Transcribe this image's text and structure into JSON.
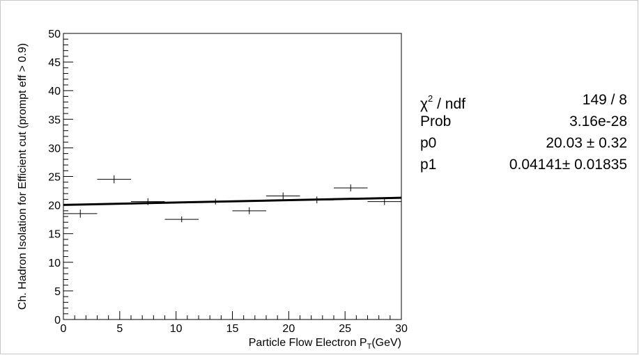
{
  "chart_data": {
    "type": "scatter",
    "title": "",
    "xlabel": "Particle Flow Electron P",
    "xlabel_sub": "T",
    "xlabel_unit": "(GeV)",
    "ylabel": "Ch. Hadron Isolation for Efficient cut (prompt eff > 0.9)",
    "xlim": [
      0,
      30
    ],
    "ylim": [
      0,
      50
    ],
    "x_ticks": [
      0,
      5,
      10,
      15,
      20,
      25,
      30
    ],
    "y_ticks": [
      0,
      5,
      10,
      15,
      20,
      25,
      30,
      35,
      40,
      45,
      50
    ],
    "grid": false,
    "series": [
      {
        "x": [
          1.5,
          4.5,
          7.5,
          10.5,
          13.5,
          16.5,
          19.5,
          22.5,
          25.5,
          28.5
        ],
        "y": [
          18.5,
          24.5,
          20.6,
          17.5,
          20.6,
          19.0,
          21.6,
          20.9,
          23.0,
          20.6
        ],
        "xerr": [
          1.5,
          1.5,
          1.5,
          1.5,
          1.5,
          1.5,
          1.5,
          1.5,
          1.5,
          1.5
        ],
        "yerr": [
          0.7,
          0.7,
          0.6,
          0.5,
          0.5,
          0.6,
          0.6,
          0.6,
          0.6,
          0.6
        ]
      }
    ],
    "fit": {
      "type": "linear",
      "p0": 20.03,
      "p1": 0.04141,
      "x_range": [
        0,
        30
      ]
    }
  },
  "stats": [
    {
      "name": "χ",
      "name_sup": "2",
      "name_rest": " / ndf",
      "value": "149 / 8"
    },
    {
      "name": "Prob",
      "value": "3.16e-28"
    },
    {
      "name": "p0",
      "value": "20.03 ± 0.32"
    },
    {
      "name": "p1",
      "value": "0.04141± 0.01835"
    }
  ]
}
